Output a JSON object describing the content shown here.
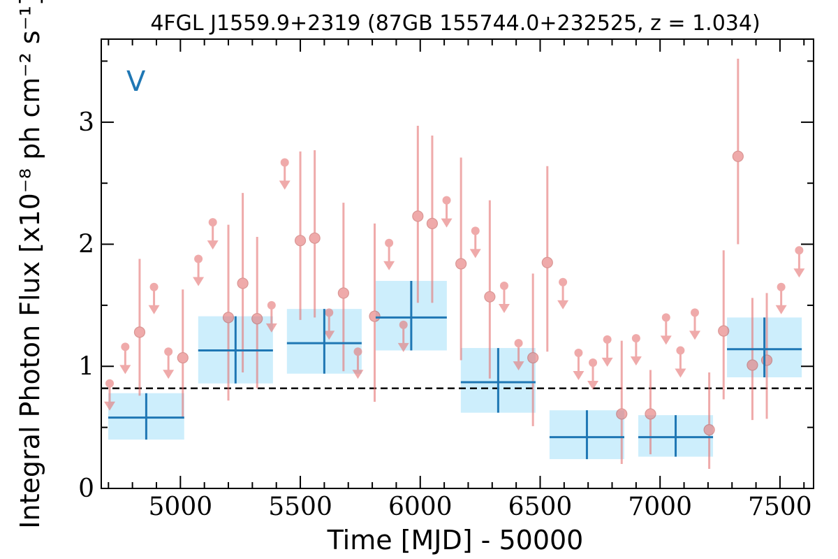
{
  "chart_data": {
    "type": "scatter",
    "title": "4FGL J1559.9+2319 (87GB 155744.0+232525, z = 1.034)",
    "xlabel": "Time [MJD] - 50000",
    "ylabel": "Integral Photon Flux [x10⁻⁸ ph cm⁻² s⁻¹]",
    "annotation": "V",
    "xlim": [
      4670,
      7640
    ],
    "ylim": [
      0,
      3.68
    ],
    "xticks": [
      5000,
      5500,
      6000,
      6500,
      7000,
      7500
    ],
    "xtick_labels": [
      "5000",
      "5500",
      "6000",
      "6500",
      "7000",
      "7500"
    ],
    "yticks": [
      0,
      1,
      2,
      3
    ],
    "ytick_labels": [
      "0",
      "1",
      "2",
      "3"
    ],
    "mean_flux": 0.82,
    "colors": {
      "detections": "#e57373",
      "upper_limits": "#e57373",
      "bayesian_blocks": "#1f77b4",
      "block_band": "#cdeefc",
      "mean_line": "#000000"
    },
    "series": [
      {
        "kind": "upper_limits",
        "points": [
          {
            "x": 4705,
            "y": 0.86
          },
          {
            "x": 4770,
            "y": 1.16
          },
          {
            "x": 4890,
            "y": 1.65
          },
          {
            "x": 4950,
            "y": 1.12
          },
          {
            "x": 5075,
            "y": 1.88
          },
          {
            "x": 5135,
            "y": 2.18
          },
          {
            "x": 5380,
            "y": 1.5
          },
          {
            "x": 5435,
            "y": 2.67
          },
          {
            "x": 5620,
            "y": 1.44
          },
          {
            "x": 5740,
            "y": 1.12
          },
          {
            "x": 5870,
            "y": 2.01
          },
          {
            "x": 5930,
            "y": 1.34
          },
          {
            "x": 6110,
            "y": 2.36
          },
          {
            "x": 6230,
            "y": 2.11
          },
          {
            "x": 6350,
            "y": 1.66
          },
          {
            "x": 6410,
            "y": 1.19
          },
          {
            "x": 6595,
            "y": 1.69
          },
          {
            "x": 6660,
            "y": 1.11
          },
          {
            "x": 6720,
            "y": 1.03
          },
          {
            "x": 6780,
            "y": 1.22
          },
          {
            "x": 6900,
            "y": 1.23
          },
          {
            "x": 7025,
            "y": 1.4
          },
          {
            "x": 7085,
            "y": 1.13
          },
          {
            "x": 7145,
            "y": 1.44
          },
          {
            "x": 7505,
            "y": 1.65
          },
          {
            "x": 7580,
            "y": 1.95
          }
        ]
      },
      {
        "kind": "detections",
        "points": [
          {
            "x": 4830,
            "y": 1.28,
            "lo": 0.76,
            "hi": 1.88
          },
          {
            "x": 5010,
            "y": 1.07,
            "lo": 0.58,
            "hi": 1.63
          },
          {
            "x": 5200,
            "y": 1.4,
            "lo": 0.72,
            "hi": 2.16
          },
          {
            "x": 5260,
            "y": 1.68,
            "lo": 0.95,
            "hi": 2.42
          },
          {
            "x": 5320,
            "y": 1.39,
            "lo": 0.82,
            "hi": 2.06
          },
          {
            "x": 5500,
            "y": 2.03,
            "lo": 1.38,
            "hi": 2.76
          },
          {
            "x": 5560,
            "y": 2.05,
            "lo": 1.4,
            "hi": 2.77
          },
          {
            "x": 5680,
            "y": 1.6,
            "lo": 0.96,
            "hi": 2.34
          },
          {
            "x": 5810,
            "y": 1.41,
            "lo": 0.71,
            "hi": 2.17
          },
          {
            "x": 5990,
            "y": 2.23,
            "lo": 1.52,
            "hi": 2.97
          },
          {
            "x": 6050,
            "y": 2.17,
            "lo": 1.52,
            "hi": 2.89
          },
          {
            "x": 6170,
            "y": 1.84,
            "lo": 1.05,
            "hi": 2.71
          },
          {
            "x": 6290,
            "y": 1.57,
            "lo": 0.9,
            "hi": 2.36
          },
          {
            "x": 6470,
            "y": 1.07,
            "lo": 0.51,
            "hi": 1.76
          },
          {
            "x": 6530,
            "y": 1.85,
            "lo": 1.12,
            "hi": 2.64
          },
          {
            "x": 6840,
            "y": 0.61,
            "lo": 0.2,
            "hi": 1.21
          },
          {
            "x": 6960,
            "y": 0.61,
            "lo": 0.28,
            "hi": 0.97
          },
          {
            "x": 7205,
            "y": 0.48,
            "lo": 0.16,
            "hi": 0.95
          },
          {
            "x": 7265,
            "y": 1.29,
            "lo": 0.73,
            "hi": 1.95
          },
          {
            "x": 7325,
            "y": 2.72,
            "lo": 2.0,
            "hi": 3.52
          },
          {
            "x": 7385,
            "y": 1.01,
            "lo": 0.56,
            "hi": 1.56
          },
          {
            "x": 7445,
            "y": 1.05,
            "lo": 0.57,
            "hi": 1.6
          }
        ]
      },
      {
        "kind": "bayesian_blocks",
        "blocks": [
          {
            "x0": 4670,
            "x1": 5045,
            "y": 0.58,
            "lo": 0.4,
            "hi": 0.78
          },
          {
            "x0": 5045,
            "x1": 5415,
            "y": 1.13,
            "lo": 0.86,
            "hi": 1.41
          },
          {
            "x0": 5415,
            "x1": 5785,
            "y": 1.19,
            "lo": 0.94,
            "hi": 1.47
          },
          {
            "x0": 5785,
            "x1": 6140,
            "y": 1.4,
            "lo": 1.13,
            "hi": 1.7
          },
          {
            "x0": 6140,
            "x1": 6510,
            "y": 0.87,
            "lo": 0.62,
            "hi": 1.15
          },
          {
            "x0": 6510,
            "x1": 6880,
            "y": 0.42,
            "lo": 0.24,
            "hi": 0.64
          },
          {
            "x0": 6880,
            "x1": 7250,
            "y": 0.42,
            "lo": 0.26,
            "hi": 0.6
          },
          {
            "x0": 7250,
            "x1": 7620,
            "y": 1.14,
            "lo": 0.91,
            "hi": 1.4
          }
        ]
      }
    ]
  }
}
